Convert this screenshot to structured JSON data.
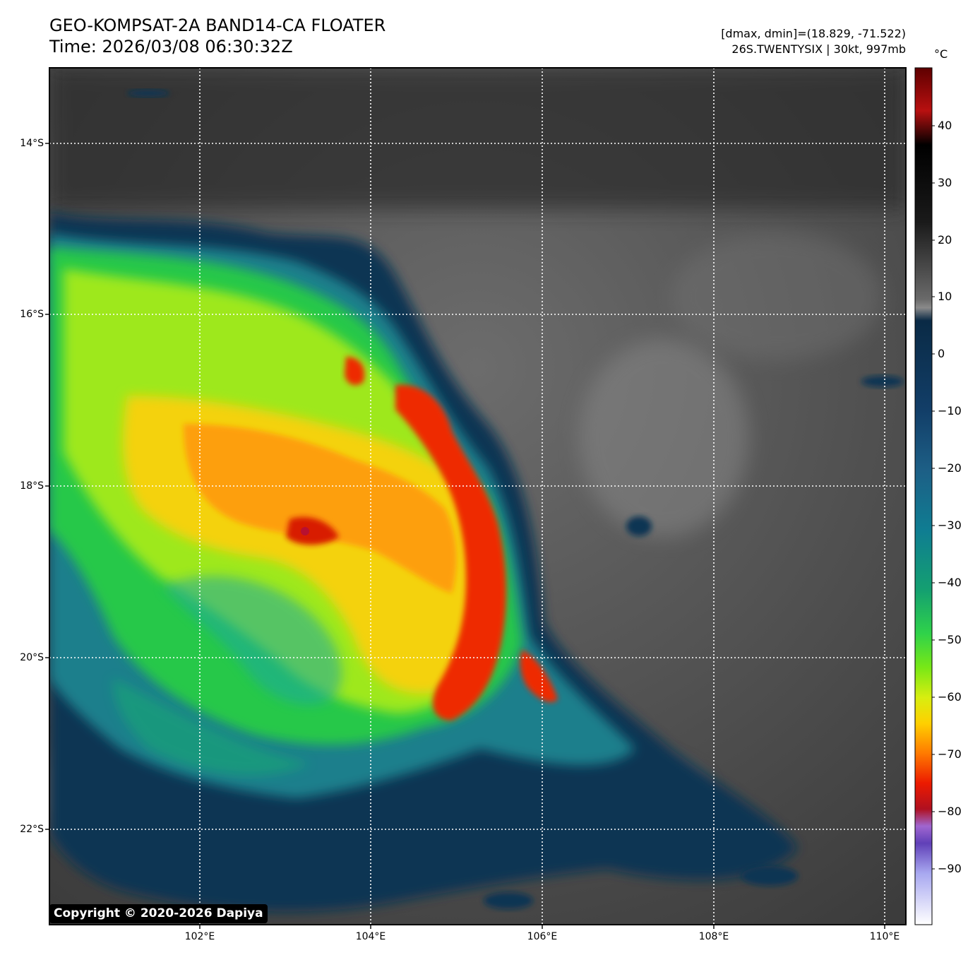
{
  "header": {
    "title_line1": "GEO-KOMPSAT-2A BAND14-CA FLOATER",
    "title_line2": "Time: 2026/03/08 06:30:32Z",
    "info_line1": "[dmax, dmin]=(18.829, -71.522)",
    "info_line2": "26S.TWENTYSIX | 30kt, 997mb"
  },
  "colorbar": {
    "unit": "°C",
    "ticks": [
      "40",
      "30",
      "20",
      "10",
      "0",
      "−10",
      "−20",
      "−30",
      "−40",
      "−50",
      "−60",
      "−70",
      "−80",
      "−90"
    ]
  },
  "axes": {
    "lat_labels": [
      "14°S",
      "16°S",
      "18°S",
      "20°S",
      "22°S"
    ],
    "lon_labels": [
      "102°E",
      "104°E",
      "106°E",
      "108°E",
      "110°E"
    ]
  },
  "image": {
    "max_temp_c": 18.829,
    "min_temp_c": -71.522,
    "storm": "26S.TWENTYSIX",
    "intensity_kt": 30,
    "pressure_mb": 997
  },
  "copyright": "Copyright © 2020-2026 Dapiya"
}
